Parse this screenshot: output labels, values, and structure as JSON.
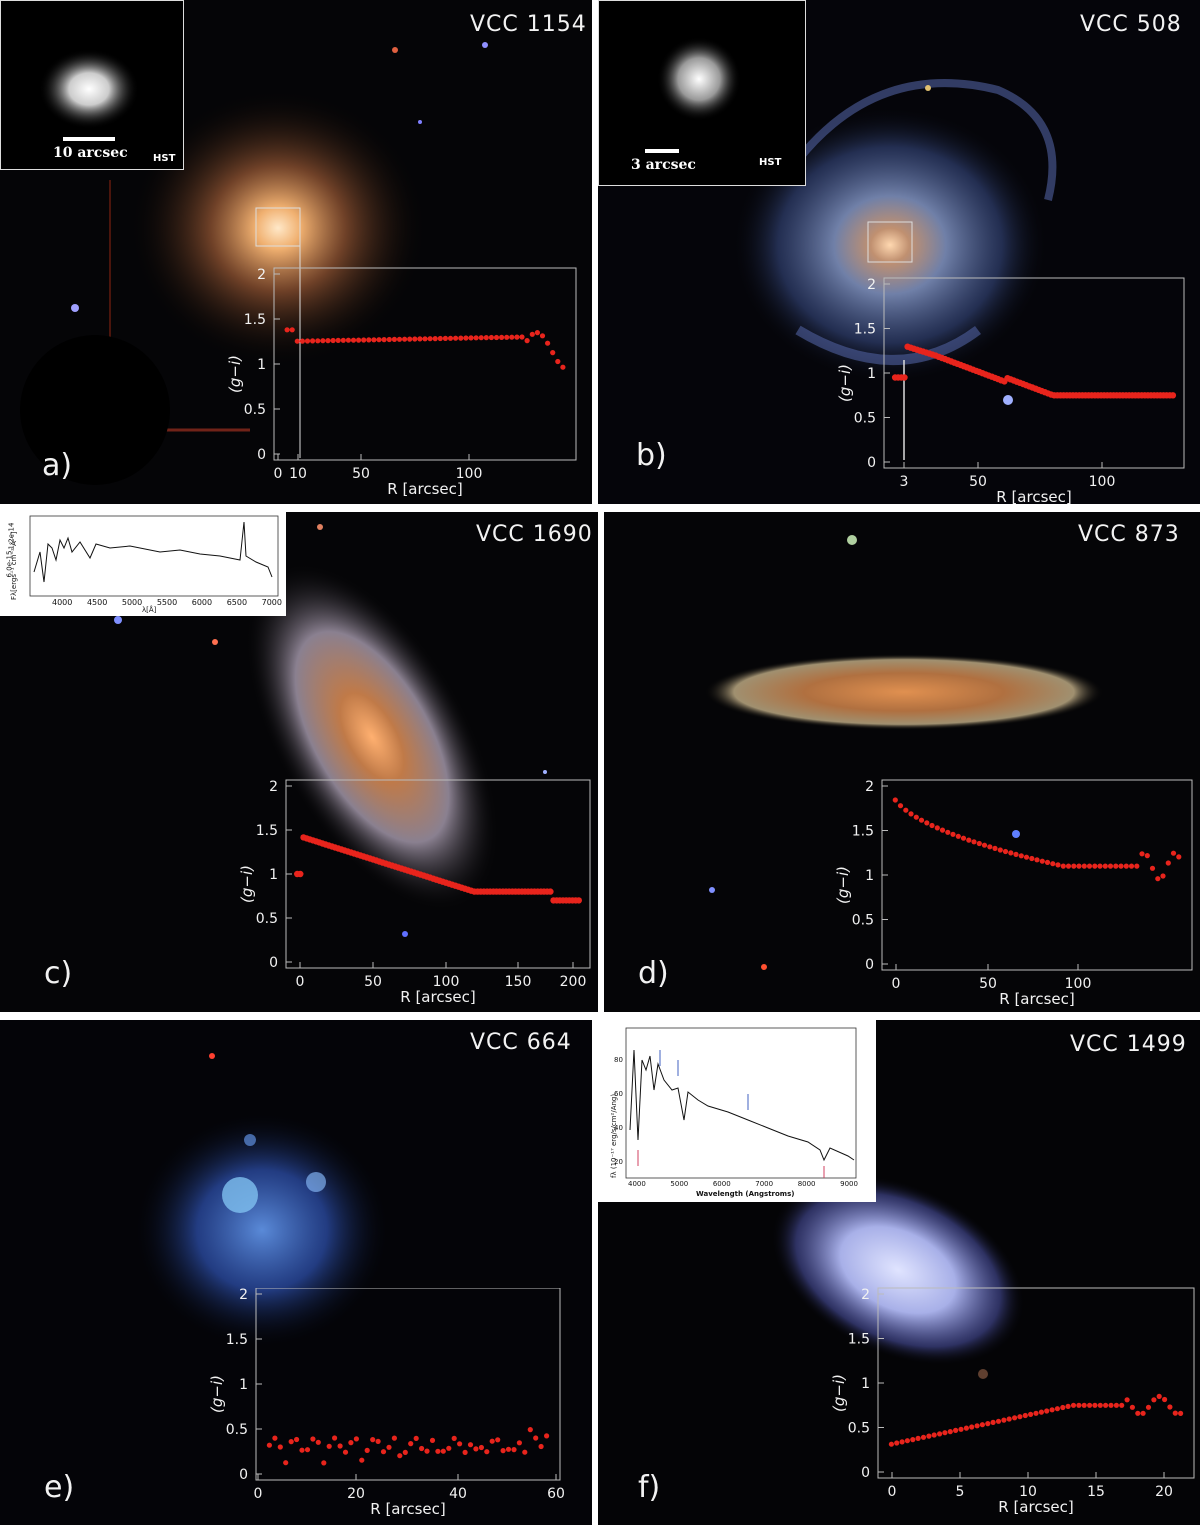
{
  "panels": [
    {
      "id": "a",
      "letter": "a)",
      "title": "VCC 1154",
      "inset": {
        "type": "hst",
        "scale_label": "10 arcsec",
        "source": "HST"
      },
      "plot": {
        "xlabel": "R [arcsec]",
        "ylabel": "(g−i)",
        "yticks": [
          "0",
          "0.5",
          "1",
          "1.5",
          "2"
        ],
        "xticks": [
          "0",
          "10",
          "50",
          "100"
        ]
      }
    },
    {
      "id": "b",
      "letter": "b)",
      "title": "VCC 508",
      "inset": {
        "type": "hst",
        "scale_label": "3 arcsec",
        "source": "HST"
      },
      "plot": {
        "xlabel": "R [arcsec]",
        "ylabel": "(g−i)",
        "yticks": [
          "0",
          "0.5",
          "1",
          "1.5",
          "2"
        ],
        "xticks": [
          "3",
          "50",
          "100"
        ]
      }
    },
    {
      "id": "c",
      "letter": "c)",
      "title": "VCC 1690",
      "inset": {
        "type": "spectrum",
        "ylabel": "Fλ[ergs⁻¹ cm⁻² Å⁻¹]",
        "yticks": [
          "6.0e-15",
          "1.2e-14"
        ],
        "xticks": [
          "4000",
          "4500",
          "5000",
          "5500",
          "6000",
          "6500",
          "7000"
        ],
        "xlabel": "λ[Å]"
      },
      "plot": {
        "xlabel": "R [arcsec]",
        "ylabel": "(g−i)",
        "yticks": [
          "0",
          "0.5",
          "1",
          "1.5",
          "2"
        ],
        "xticks": [
          "0",
          "50",
          "100",
          "150",
          "200"
        ]
      }
    },
    {
      "id": "d",
      "letter": "d)",
      "title": "VCC 873",
      "plot": {
        "xlabel": "R [arcsec]",
        "ylabel": "(g−i)",
        "yticks": [
          "0",
          "0.5",
          "1",
          "1.5",
          "2"
        ],
        "xticks": [
          "0",
          "50",
          "100"
        ]
      }
    },
    {
      "id": "e",
      "letter": "e)",
      "title": "VCC 664",
      "plot": {
        "xlabel": "R [arcsec]",
        "ylabel": "(g−i)",
        "yticks": [
          "0",
          "0.5",
          "1",
          "1.5",
          "2"
        ],
        "xticks": [
          "0",
          "20",
          "40",
          "60"
        ]
      }
    },
    {
      "id": "f",
      "letter": "f)",
      "title": "VCC 1499",
      "inset": {
        "type": "spectrum",
        "ylabel": "fλ (10⁻¹⁷ erg/s/cm²/Ang)",
        "yticks": [
          "20",
          "40",
          "60",
          "80"
        ],
        "xticks": [
          "4000",
          "5000",
          "6000",
          "7000",
          "8000",
          "9000"
        ],
        "xlabel": "Wavelength (Angstroms)"
      },
      "plot": {
        "xlabel": "R [arcsec]",
        "ylabel": "(g−i)",
        "yticks": [
          "0",
          "0.5",
          "1",
          "1.5",
          "2"
        ],
        "xticks": [
          "0",
          "5",
          "10",
          "15",
          "20"
        ]
      }
    }
  ],
  "colors": {
    "profile": "#e8241c",
    "axis": "#bbbbbb",
    "text": "#f2f2f2"
  }
}
